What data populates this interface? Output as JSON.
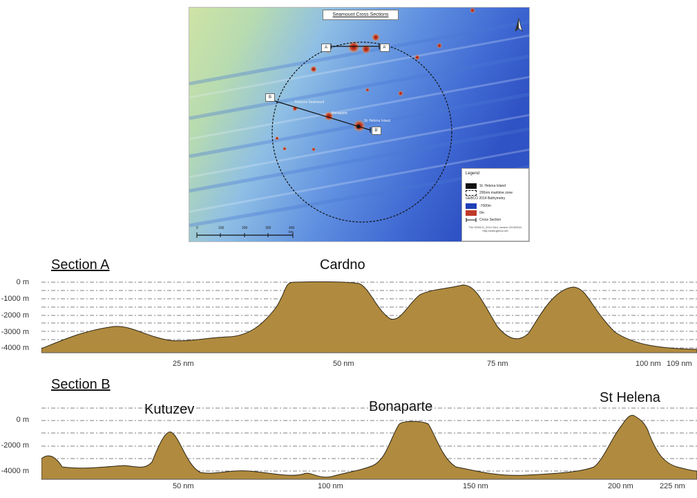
{
  "map": {
    "title": "Seamount Cross Sections",
    "section_markers": {
      "a_start": "A",
      "a_end": "A'",
      "b_start": "B",
      "b_end": "B'"
    },
    "feature_labels": {
      "kutuzov": "Kutuzov Seamount",
      "bonaparte": "Bonaparte",
      "st_helena": "St. Helena Island"
    },
    "scale_labels": [
      "0",
      "100",
      "200",
      "300",
      "400 km"
    ],
    "legend": {
      "title": "Legend",
      "island": "St. Helena Island",
      "zone": "200nm maritime zone",
      "bathymetry": "GEBCO 2014 Bathymetry",
      "deep": "-7000m",
      "shallow": "0m",
      "cross_section": "Cross Section",
      "credit_1": "The GEBCO_2014 Grid, version 20150318,",
      "credit_2": "http://www.gebco.net"
    },
    "colors": {
      "deep": "#1f3fb8",
      "mid": "#6f9fe0",
      "shallow_plain": "#c9e0a0",
      "summit": "#c0392b",
      "zone_line": "#111111"
    }
  },
  "section_a": {
    "title": "Section A",
    "peak_label": "Cardno",
    "y_ticks": [
      "0 m",
      "-1000 m",
      "-2000 m",
      "-3000 m",
      "-4000 m"
    ],
    "x_ticks": [
      "25 nm",
      "50 nm",
      "75 nm",
      "100 nm",
      "109 nm"
    ],
    "fill_color": "#b08a3e"
  },
  "section_b": {
    "title": "Section B",
    "peak_labels": {
      "kutuzev": "Kutuzev",
      "bonaparte": "Bonaparte",
      "st_helena": "St Helena"
    },
    "y_ticks": [
      "0 m",
      "-2000 m",
      "-4000 m"
    ],
    "x_ticks": [
      "50 nm",
      "100 nm",
      "150 nm",
      "200 nm",
      "225 nm"
    ],
    "fill_color": "#b08a3e"
  }
}
